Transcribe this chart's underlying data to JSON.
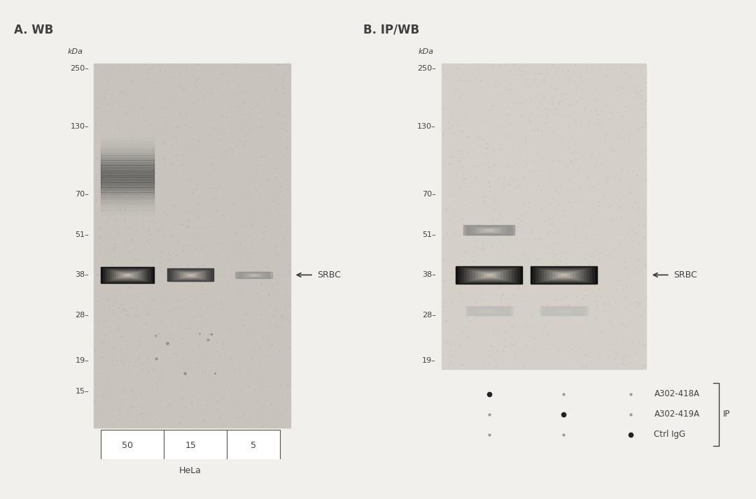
{
  "fig_bg": "#f2f0ed",
  "blot_bg_A": "#c8c4bc",
  "blot_bg_B": "#d4d0c8",
  "panel_A_title": "A. WB",
  "panel_B_title": "B. IP/WB",
  "kda_label": "kDa",
  "mw_markers_A": [
    250,
    130,
    70,
    51,
    38,
    28,
    19,
    15
  ],
  "mw_markers_B": [
    250,
    130,
    70,
    51,
    38,
    28,
    19
  ],
  "srbc_label": "SRBC",
  "panel_A_lanes": [
    "50",
    "15",
    "5"
  ],
  "panel_A_cell_line": "HeLa",
  "panel_B_antibodies": [
    "A302-418A",
    "A302-419A",
    "Ctrl IgG"
  ],
  "panel_B_ip_label": "IP",
  "text_color": "#404040",
  "band_black": "#111111",
  "band_dark": "#333333",
  "band_gray": "#888888",
  "band_light": "#bbbbbb"
}
